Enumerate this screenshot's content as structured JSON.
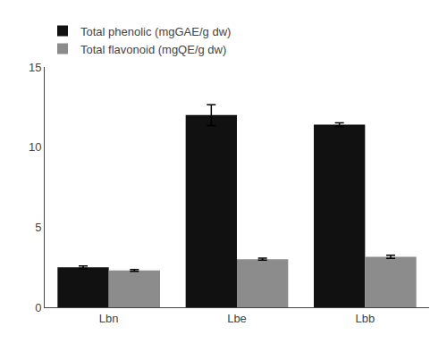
{
  "chart_data": {
    "type": "bar",
    "categories": [
      "Lbn",
      "Lbe",
      "Lbb"
    ],
    "series": [
      {
        "name": "Total phenolic (mgGAE/g dw)",
        "color": "#111111",
        "values": [
          2.5,
          12.0,
          11.4
        ],
        "errors": [
          0.08,
          0.65,
          0.12
        ]
      },
      {
        "name": "Total flavonoid (mgQE/g dw)",
        "color": "#8c8c8c",
        "values": [
          2.3,
          3.0,
          3.15
        ],
        "errors": [
          0.06,
          0.06,
          0.1
        ]
      }
    ],
    "ylim": [
      0,
      15
    ],
    "yticks": [
      0,
      5,
      10,
      15
    ],
    "grid": false,
    "legend": "upper left"
  }
}
